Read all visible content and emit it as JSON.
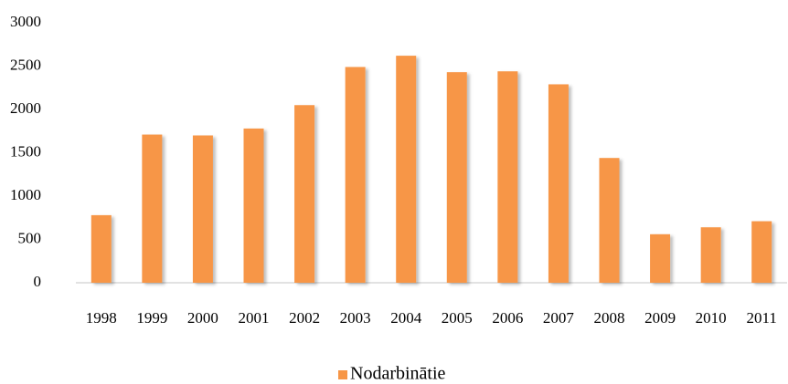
{
  "chart_data": {
    "type": "bar",
    "categories": [
      "1998",
      "1999",
      "2000",
      "2001",
      "2002",
      "2003",
      "2004",
      "2005",
      "2006",
      "2007",
      "2008",
      "2009",
      "2010",
      "2011"
    ],
    "series": [
      {
        "name": "Nodarbinātie",
        "color": "#f79646",
        "values": [
          780,
          1710,
          1700,
          1780,
          2050,
          2490,
          2620,
          2430,
          2440,
          2290,
          1440,
          560,
          640,
          710
        ]
      }
    ],
    "ylim": [
      0,
      3000
    ],
    "yticks": [
      0,
      500,
      1000,
      1500,
      2000,
      2500,
      3000
    ],
    "grid": false,
    "legend": "bottom"
  }
}
